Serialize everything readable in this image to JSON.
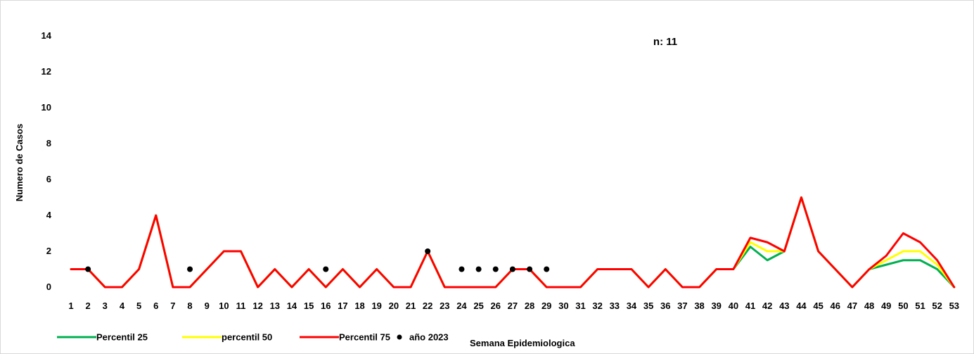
{
  "chart_data": {
    "type": "line",
    "title": "",
    "annotation": "n: 11",
    "xlabel": "Semana Epidemiologica",
    "ylabel": "Numero de Casos",
    "ylim": [
      0,
      14
    ],
    "yticks": [
      0,
      2,
      4,
      6,
      8,
      10,
      12,
      14
    ],
    "grid": false,
    "legend_position": "bottom-left",
    "categories": [
      "1",
      "2",
      "3",
      "4",
      "5",
      "6",
      "7",
      "8",
      "9",
      "10",
      "11",
      "12",
      "13",
      "14",
      "15",
      "16",
      "17",
      "18",
      "19",
      "20",
      "21",
      "22",
      "23",
      "24",
      "25",
      "26",
      "27",
      "28",
      "29",
      "30",
      "31",
      "32",
      "33",
      "34",
      "35",
      "36",
      "37",
      "38",
      "39",
      "40",
      "41",
      "42",
      "43",
      "44",
      "45",
      "46",
      "47",
      "48",
      "49",
      "50",
      "51",
      "52",
      "53"
    ],
    "series": [
      {
        "name": "Percentil 25",
        "kind": "line",
        "color": "#00b050",
        "values": [
          1,
          1,
          0,
          0,
          1,
          4,
          0,
          0,
          1,
          2,
          2,
          0,
          1,
          0,
          1,
          0,
          1,
          0,
          1,
          0,
          0,
          2,
          0,
          0,
          0,
          0,
          1,
          1,
          0,
          0,
          0,
          1,
          1,
          1,
          0,
          1,
          0,
          0,
          1,
          1,
          2.25,
          1.5,
          2,
          5,
          2,
          1,
          0,
          1,
          1.25,
          1.5,
          1.5,
          1,
          0
        ]
      },
      {
        "name": "percentil 50",
        "kind": "line",
        "color": "#ffff00",
        "values": [
          1,
          1,
          0,
          0,
          1,
          4,
          0,
          0,
          1,
          2,
          2,
          0,
          1,
          0,
          1,
          0,
          1,
          0,
          1,
          0,
          0,
          2,
          0,
          0,
          0,
          0,
          1,
          1,
          0,
          0,
          0,
          1,
          1,
          1,
          0,
          1,
          0,
          0,
          1,
          1,
          2.5,
          2,
          2,
          5,
          2,
          1,
          0,
          1,
          1.5,
          2,
          2,
          1.25,
          0
        ]
      },
      {
        "name": "Percentil 75",
        "kind": "line",
        "color": "#ff0000",
        "values": [
          1,
          1,
          0,
          0,
          1,
          4,
          0,
          0,
          1,
          2,
          2,
          0,
          1,
          0,
          1,
          0,
          1,
          0,
          1,
          0,
          0,
          2,
          0,
          0,
          0,
          0,
          1,
          1,
          0,
          0,
          0,
          1,
          1,
          1,
          0,
          1,
          0,
          0,
          1,
          1,
          2.75,
          2.5,
          2,
          5,
          2,
          1,
          0,
          1,
          1.75,
          3,
          2.5,
          1.5,
          0
        ]
      },
      {
        "name": "año 2023",
        "kind": "scatter",
        "color": "#000000",
        "points": [
          {
            "x": "2",
            "y": 1
          },
          {
            "x": "8",
            "y": 1
          },
          {
            "x": "16",
            "y": 1
          },
          {
            "x": "22",
            "y": 2
          },
          {
            "x": "24",
            "y": 1
          },
          {
            "x": "25",
            "y": 1
          },
          {
            "x": "26",
            "y": 1
          },
          {
            "x": "27",
            "y": 1
          },
          {
            "x": "28",
            "y": 1
          },
          {
            "x": "29",
            "y": 1
          }
        ]
      }
    ]
  }
}
